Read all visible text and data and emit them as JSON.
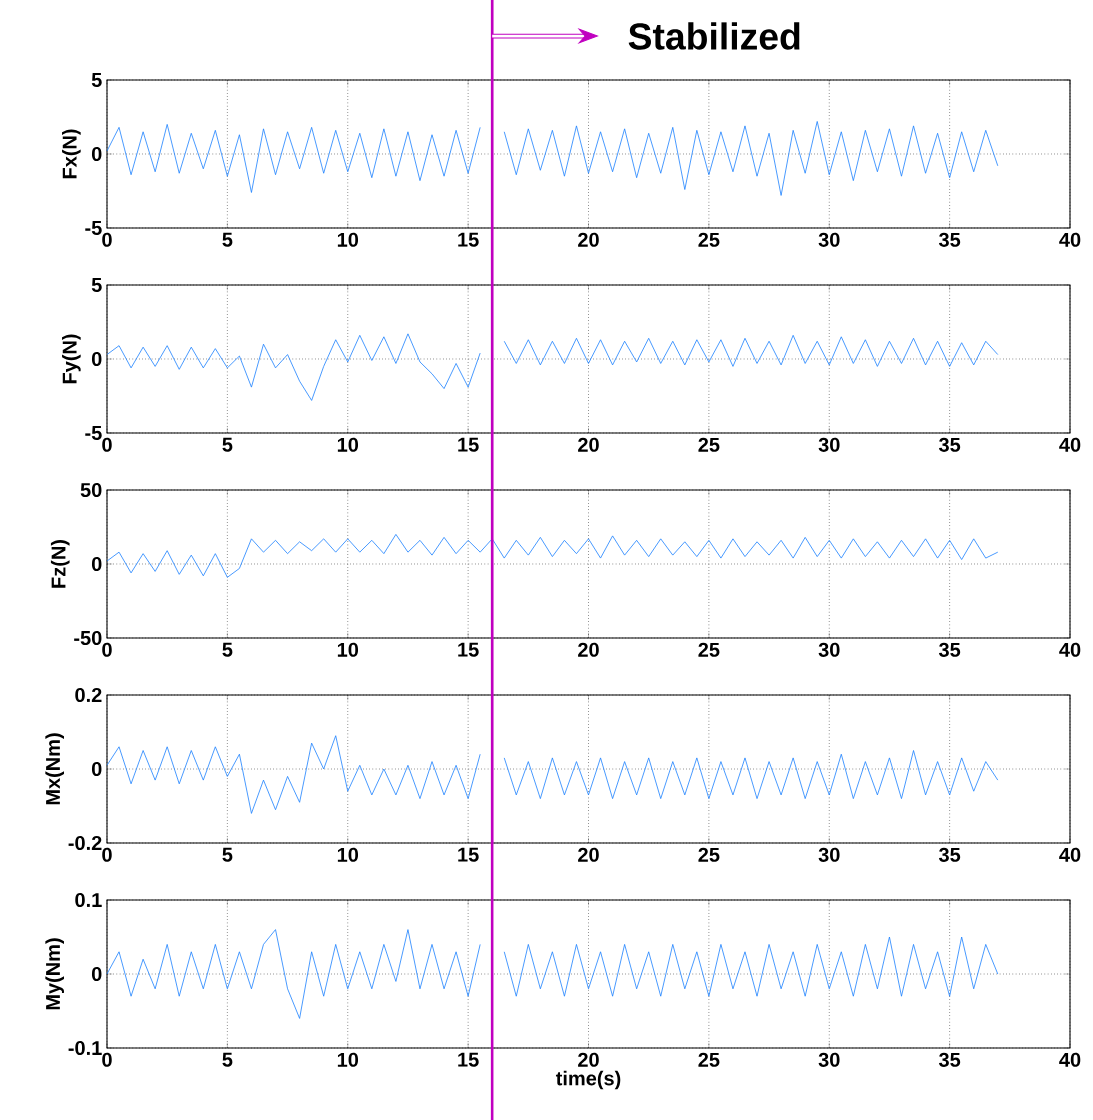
{
  "chart_data": [
    {
      "type": "line",
      "ylabel": "Fx(N)",
      "xlim": [
        0,
        40
      ],
      "ylim": [
        -5,
        5
      ],
      "xticks": [
        0,
        5,
        10,
        15,
        20,
        25,
        30,
        35,
        40
      ],
      "yticks": [
        -5,
        0,
        5
      ],
      "grid": true,
      "x": [
        0,
        0.5,
        1,
        1.5,
        2,
        2.5,
        3,
        3.5,
        4,
        4.5,
        5,
        5.5,
        6,
        6.5,
        7,
        7.5,
        8,
        8.5,
        9,
        9.5,
        10,
        10.5,
        11,
        11.5,
        12,
        12.5,
        13,
        13.5,
        14,
        14.5,
        15,
        15.5,
        16,
        16.5,
        17,
        17.5,
        18,
        18.5,
        19,
        19.5,
        20,
        20.5,
        21,
        21.5,
        22,
        22.5,
        23,
        23.5,
        24,
        24.5,
        25,
        25.5,
        26,
        26.5,
        27,
        27.5,
        28,
        28.5,
        29,
        29.5,
        30,
        30.5,
        31,
        31.5,
        32,
        32.5,
        33,
        33.5,
        34,
        34.5,
        35,
        35.5,
        36,
        36.5,
        37
      ],
      "ref_lines": [
        {
          "axis": "x",
          "value": 16,
          "label": "Stabilized",
          "color": "#c000c0"
        }
      ],
      "series": [
        {
          "color": "#1a80ff",
          "values": [
            0.2,
            1.8,
            -1.4,
            1.5,
            -1.2,
            2.0,
            -1.3,
            1.4,
            -1.0,
            1.6,
            -1.5,
            1.3,
            -2.6,
            1.7,
            -1.4,
            1.5,
            -1.0,
            1.8,
            -1.3,
            1.6,
            -1.2,
            1.4,
            -1.6,
            1.7,
            -1.5,
            1.5,
            -1.8,
            1.3,
            -1.5,
            1.6,
            -1.3,
            1.8,
            null,
            1.5,
            -1.4,
            1.7,
            -1.1,
            1.6,
            -1.5,
            1.9,
            -1.3,
            1.5,
            -1.2,
            1.7,
            -1.6,
            1.4,
            -1.3,
            1.8,
            -2.4,
            1.6,
            -1.4,
            1.5,
            -1.2,
            1.9,
            -1.5,
            1.4,
            -2.8,
            1.6,
            -1.3,
            2.2,
            -1.4,
            1.5,
            -1.8,
            1.6,
            -1.2,
            1.7,
            -1.5,
            1.9,
            -1.3,
            1.4,
            -1.6,
            1.5,
            -1.2,
            1.6,
            -0.8
          ]
        }
      ]
    },
    {
      "type": "line",
      "ylabel": "Fy(N)",
      "xlim": [
        0,
        40
      ],
      "ylim": [
        -5,
        5
      ],
      "xticks": [
        0,
        5,
        10,
        15,
        20,
        25,
        30,
        35,
        40
      ],
      "yticks": [
        -5,
        0,
        5
      ],
      "grid": true,
      "x": [
        0,
        0.5,
        1,
        1.5,
        2,
        2.5,
        3,
        3.5,
        4,
        4.5,
        5,
        5.5,
        6,
        6.5,
        7,
        7.5,
        8,
        8.5,
        9,
        9.5,
        10,
        10.5,
        11,
        11.5,
        12,
        12.5,
        13,
        13.5,
        14,
        14.5,
        15,
        15.5,
        16,
        16.5,
        17,
        17.5,
        18,
        18.5,
        19,
        19.5,
        20,
        20.5,
        21,
        21.5,
        22,
        22.5,
        23,
        23.5,
        24,
        24.5,
        25,
        25.5,
        26,
        26.5,
        27,
        27.5,
        28,
        28.5,
        29,
        29.5,
        30,
        30.5,
        31,
        31.5,
        32,
        32.5,
        33,
        33.5,
        34,
        34.5,
        35,
        35.5,
        36,
        36.5,
        37
      ],
      "ref_lines": [
        {
          "axis": "x",
          "value": 16,
          "color": "#c000c0"
        }
      ],
      "series": [
        {
          "color": "#1a80ff",
          "values": [
            0.3,
            0.9,
            -0.6,
            0.8,
            -0.5,
            0.9,
            -0.7,
            0.8,
            -0.6,
            0.7,
            -0.6,
            0.2,
            -1.9,
            1.0,
            -0.6,
            0.3,
            -1.5,
            -2.8,
            -0.5,
            1.3,
            -0.2,
            1.6,
            -0.1,
            1.5,
            -0.3,
            1.7,
            -0.2,
            -1.0,
            -2.0,
            -0.3,
            -1.9,
            0.4,
            null,
            1.2,
            -0.3,
            1.3,
            -0.4,
            1.2,
            -0.3,
            1.4,
            -0.3,
            1.3,
            -0.4,
            1.2,
            -0.2,
            1.4,
            -0.3,
            1.2,
            -0.4,
            1.3,
            -0.2,
            1.3,
            -0.5,
            1.4,
            -0.3,
            1.2,
            -0.4,
            1.6,
            -0.3,
            1.2,
            -0.4,
            1.5,
            -0.3,
            1.3,
            -0.5,
            1.2,
            -0.3,
            1.4,
            -0.4,
            1.2,
            -0.5,
            1.1,
            -0.4,
            1.2,
            0.3
          ]
        }
      ]
    },
    {
      "type": "line",
      "ylabel": "Fz(N)",
      "xlim": [
        0,
        40
      ],
      "ylim": [
        -50,
        50
      ],
      "xticks": [
        0,
        5,
        10,
        15,
        20,
        25,
        30,
        35,
        40
      ],
      "yticks": [
        -50,
        0,
        50
      ],
      "grid": true,
      "x": [
        0,
        0.5,
        1,
        1.5,
        2,
        2.5,
        3,
        3.5,
        4,
        4.5,
        5,
        5.5,
        6,
        6.5,
        7,
        7.5,
        8,
        8.5,
        9,
        9.5,
        10,
        10.5,
        11,
        11.5,
        12,
        12.5,
        13,
        13.5,
        14,
        14.5,
        15,
        15.5,
        16,
        16.5,
        17,
        17.5,
        18,
        18.5,
        19,
        19.5,
        20,
        20.5,
        21,
        21.5,
        22,
        22.5,
        23,
        23.5,
        24,
        24.5,
        25,
        25.5,
        26,
        26.5,
        27,
        27.5,
        28,
        28.5,
        29,
        29.5,
        30,
        30.5,
        31,
        31.5,
        32,
        32.5,
        33,
        33.5,
        34,
        34.5,
        35,
        35.5,
        36,
        36.5,
        37
      ],
      "ref_lines": [
        {
          "axis": "x",
          "value": 16,
          "color": "#c000c0"
        }
      ],
      "series": [
        {
          "color": "#1a80ff",
          "values": [
            2,
            8,
            -6,
            7,
            -5,
            9,
            -7,
            6,
            -8,
            7,
            -9,
            -3,
            17,
            8,
            16,
            7,
            15,
            9,
            17,
            8,
            17,
            8,
            16,
            7,
            20,
            8,
            16,
            6,
            18,
            7,
            16,
            8,
            17,
            4,
            16,
            6,
            18,
            5,
            16,
            7,
            17,
            4,
            19,
            6,
            16,
            5,
            17,
            6,
            15,
            5,
            16,
            4,
            17,
            5,
            15,
            6,
            16,
            4,
            18,
            5,
            16,
            4,
            17,
            5,
            15,
            4,
            16,
            5,
            17,
            4,
            16,
            3,
            17,
            4,
            8
          ]
        }
      ]
    },
    {
      "type": "line",
      "ylabel": "Mx(Nm)",
      "xlim": [
        0,
        40
      ],
      "ylim": [
        -0.2,
        0.2
      ],
      "xticks": [
        0,
        5,
        10,
        15,
        20,
        25,
        30,
        35,
        40
      ],
      "yticks": [
        -0.2,
        0,
        0.2
      ],
      "grid": true,
      "x": [
        0,
        0.5,
        1,
        1.5,
        2,
        2.5,
        3,
        3.5,
        4,
        4.5,
        5,
        5.5,
        6,
        6.5,
        7,
        7.5,
        8,
        8.5,
        9,
        9.5,
        10,
        10.5,
        11,
        11.5,
        12,
        12.5,
        13,
        13.5,
        14,
        14.5,
        15,
        15.5,
        16,
        16.5,
        17,
        17.5,
        18,
        18.5,
        19,
        19.5,
        20,
        20.5,
        21,
        21.5,
        22,
        22.5,
        23,
        23.5,
        24,
        24.5,
        25,
        25.5,
        26,
        26.5,
        27,
        27.5,
        28,
        28.5,
        29,
        29.5,
        30,
        30.5,
        31,
        31.5,
        32,
        32.5,
        33,
        33.5,
        34,
        34.5,
        35,
        35.5,
        36,
        36.5,
        37
      ],
      "ref_lines": [
        {
          "axis": "x",
          "value": 16,
          "color": "#c000c0"
        }
      ],
      "series": [
        {
          "color": "#1a80ff",
          "values": [
            0.01,
            0.06,
            -0.04,
            0.05,
            -0.03,
            0.06,
            -0.04,
            0.05,
            -0.03,
            0.06,
            -0.02,
            0.04,
            -0.12,
            -0.03,
            -0.11,
            -0.02,
            -0.09,
            0.07,
            0.0,
            0.09,
            -0.06,
            0.01,
            -0.07,
            0.0,
            -0.07,
            0.01,
            -0.08,
            0.02,
            -0.07,
            0.01,
            -0.08,
            0.04,
            null,
            0.03,
            -0.07,
            0.02,
            -0.08,
            0.03,
            -0.07,
            0.02,
            -0.07,
            0.03,
            -0.08,
            0.02,
            -0.07,
            0.03,
            -0.08,
            0.02,
            -0.07,
            0.03,
            -0.08,
            0.02,
            -0.07,
            0.03,
            -0.08,
            0.02,
            -0.07,
            0.03,
            -0.08,
            0.02,
            -0.07,
            0.04,
            -0.08,
            0.02,
            -0.07,
            0.03,
            -0.08,
            0.05,
            -0.07,
            0.02,
            -0.07,
            0.03,
            -0.06,
            0.02,
            -0.03
          ]
        }
      ]
    },
    {
      "type": "line",
      "ylabel": "My(Nm)",
      "xlabel": "time(s)",
      "xlim": [
        0,
        40
      ],
      "ylim": [
        -0.1,
        0.1
      ],
      "xticks": [
        0,
        5,
        10,
        15,
        20,
        25,
        30,
        35,
        40
      ],
      "yticks": [
        -0.1,
        0,
        0.1
      ],
      "grid": true,
      "x": [
        0,
        0.5,
        1,
        1.5,
        2,
        2.5,
        3,
        3.5,
        4,
        4.5,
        5,
        5.5,
        6,
        6.5,
        7,
        7.5,
        8,
        8.5,
        9,
        9.5,
        10,
        10.5,
        11,
        11.5,
        12,
        12.5,
        13,
        13.5,
        14,
        14.5,
        15,
        15.5,
        16,
        16.5,
        17,
        17.5,
        18,
        18.5,
        19,
        19.5,
        20,
        20.5,
        21,
        21.5,
        22,
        22.5,
        23,
        23.5,
        24,
        24.5,
        25,
        25.5,
        26,
        26.5,
        27,
        27.5,
        28,
        28.5,
        29,
        29.5,
        30,
        30.5,
        31,
        31.5,
        32,
        32.5,
        33,
        33.5,
        34,
        34.5,
        35,
        35.5,
        36,
        36.5,
        37
      ],
      "ref_lines": [
        {
          "axis": "x",
          "value": 16,
          "color": "#c000c0"
        }
      ],
      "series": [
        {
          "color": "#1a80ff",
          "values": [
            0.0,
            0.03,
            -0.03,
            0.02,
            -0.02,
            0.04,
            -0.03,
            0.03,
            -0.02,
            0.04,
            -0.02,
            0.03,
            -0.02,
            0.04,
            0.06,
            -0.02,
            -0.06,
            0.03,
            -0.03,
            0.04,
            -0.02,
            0.03,
            -0.02,
            0.04,
            -0.01,
            0.06,
            -0.02,
            0.04,
            -0.02,
            0.03,
            -0.03,
            0.04,
            null,
            0.03,
            -0.03,
            0.04,
            -0.02,
            0.03,
            -0.03,
            0.04,
            -0.02,
            0.03,
            -0.03,
            0.04,
            -0.02,
            0.03,
            -0.03,
            0.04,
            -0.02,
            0.03,
            -0.03,
            0.04,
            -0.02,
            0.03,
            -0.03,
            0.04,
            -0.02,
            0.03,
            -0.03,
            0.04,
            -0.02,
            0.03,
            -0.03,
            0.04,
            -0.02,
            0.05,
            -0.03,
            0.04,
            -0.02,
            0.03,
            -0.03,
            0.05,
            -0.02,
            0.04,
            0.0
          ]
        }
      ]
    }
  ]
}
